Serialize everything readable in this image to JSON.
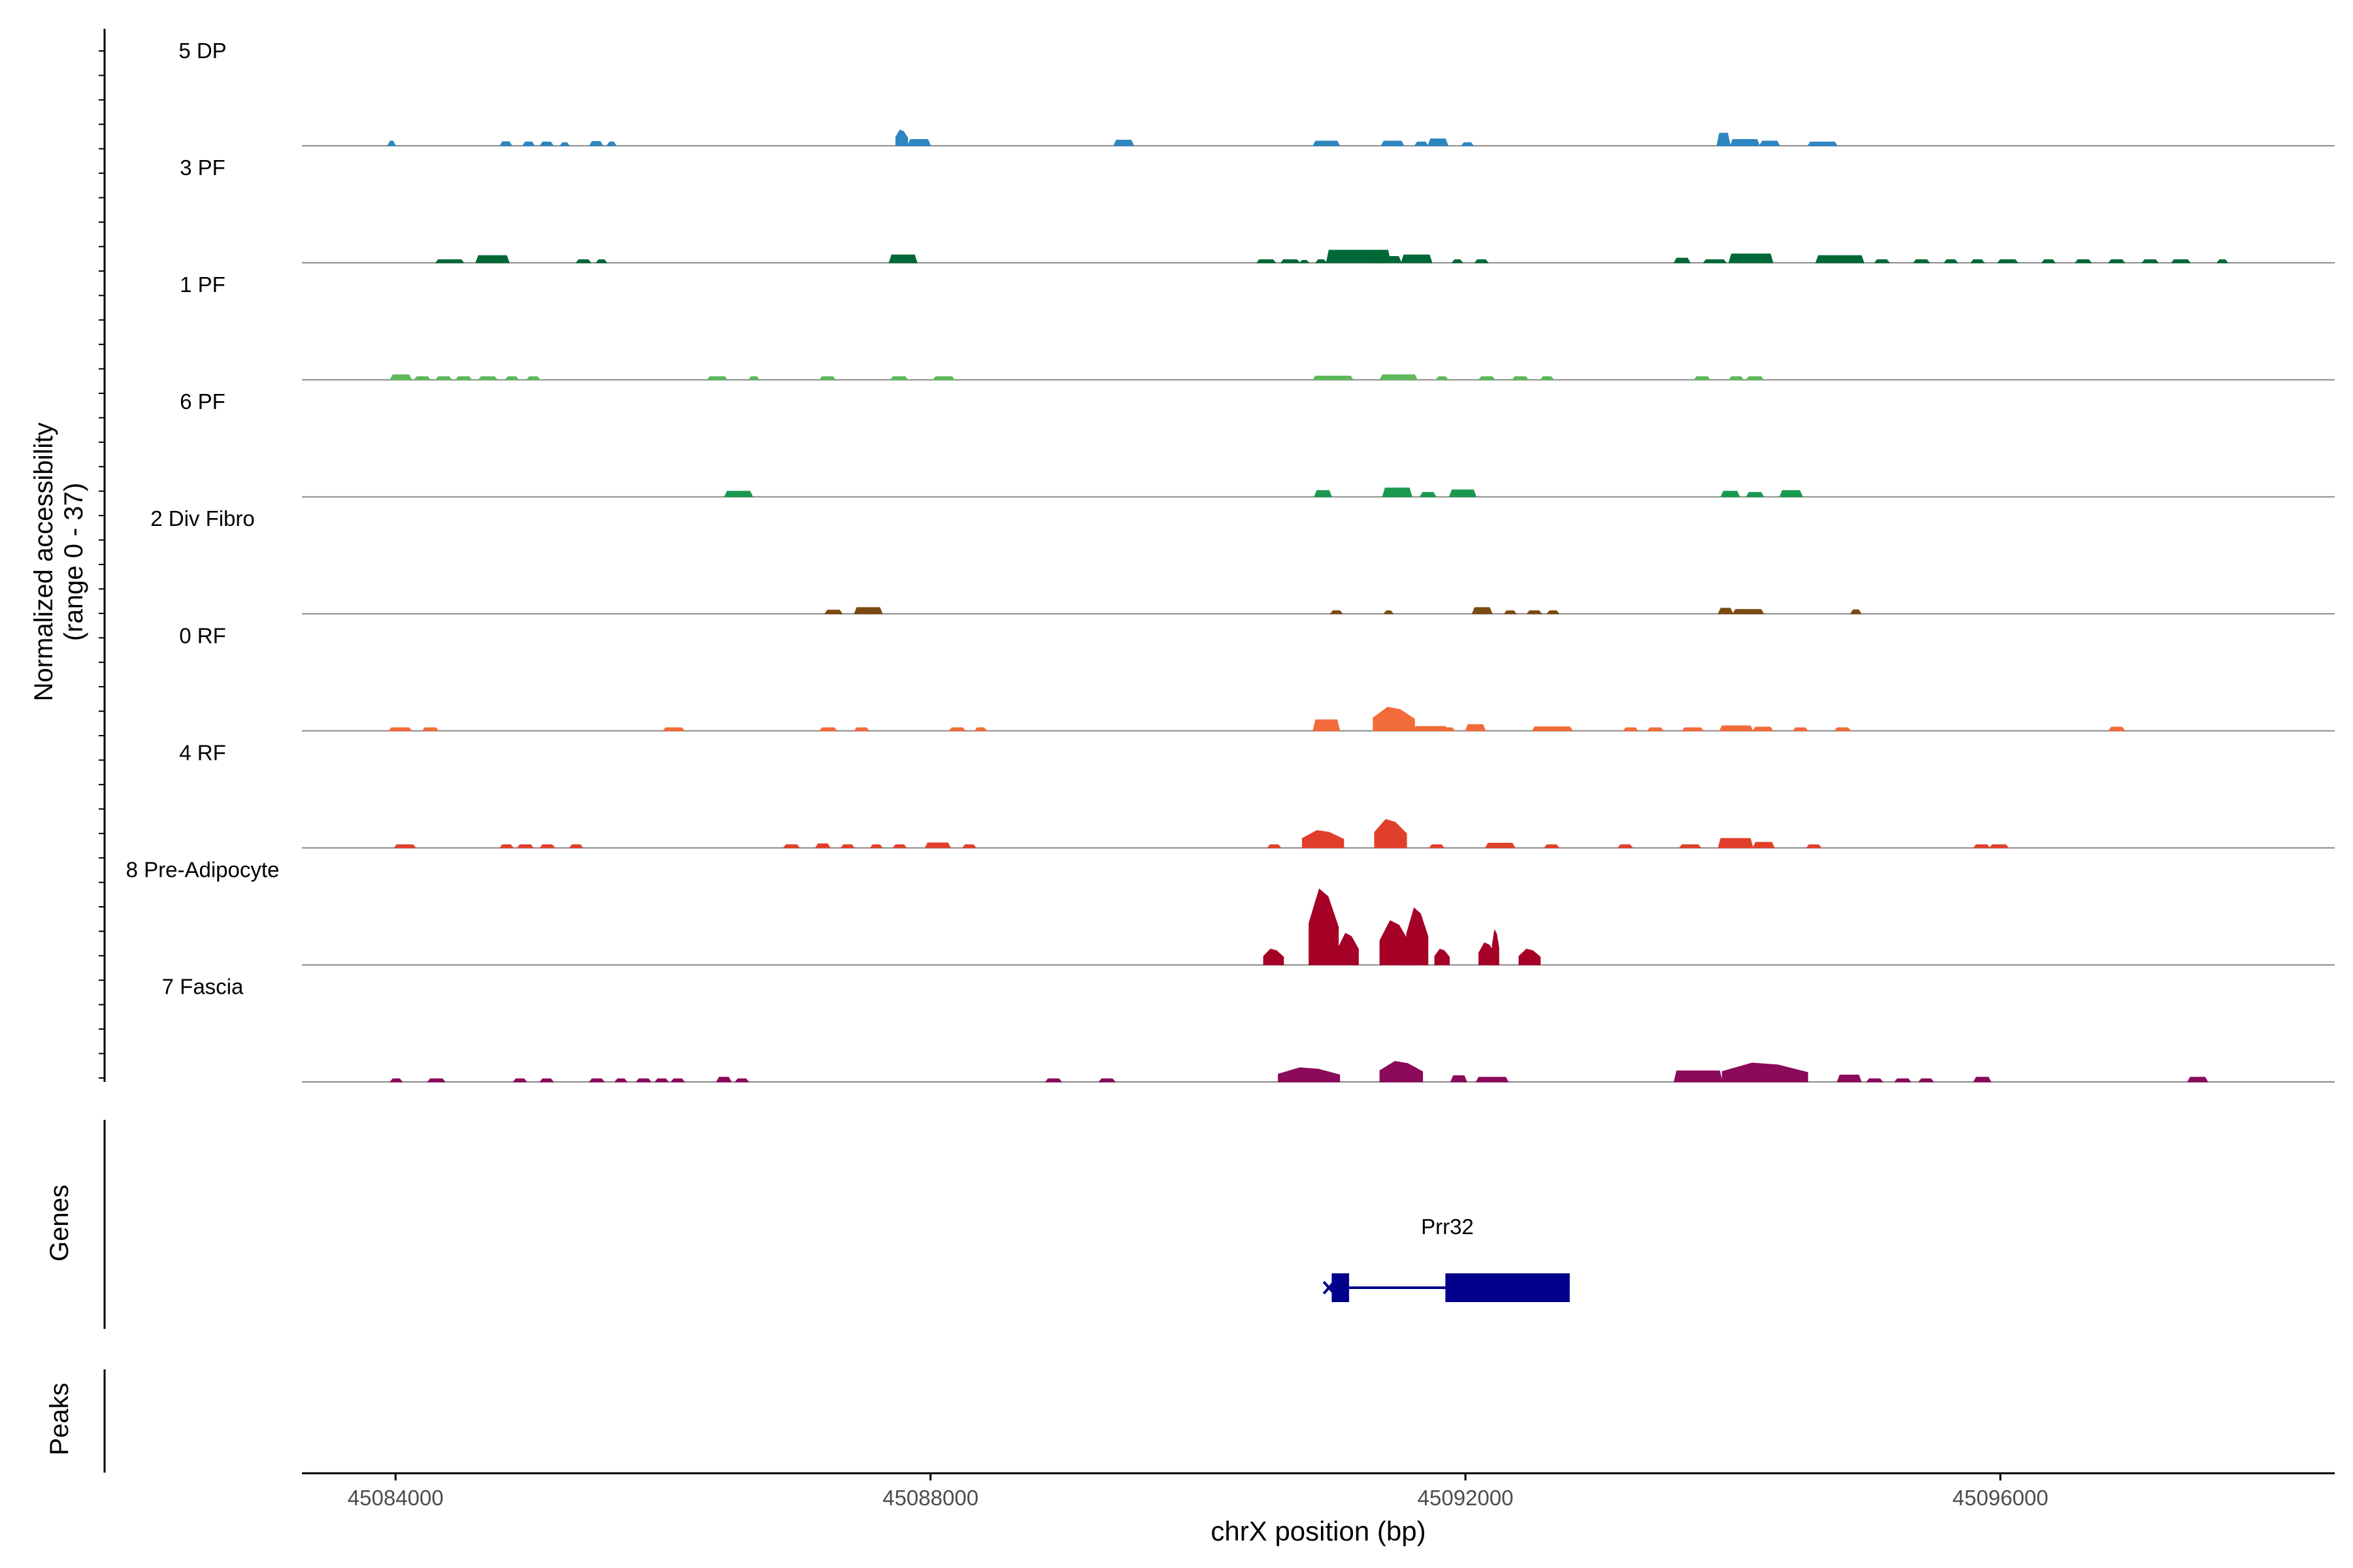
{
  "chart_data": {
    "type": "area",
    "subtype": "genome-coverage-tracks",
    "ylabel_line1": "Normalized accessibility",
    "ylabel_line2": "(range 0 - 37)",
    "ylim": [
      0,
      37
    ],
    "xlabel": "chrX position (bp)",
    "xlim": [
      45083300,
      45098500
    ],
    "xticks": [
      45084000,
      45088000,
      45092000,
      45096000
    ],
    "xtick_labels": [
      "45084000",
      "45088000",
      "45092000",
      "45096000"
    ],
    "genes_label": "Genes",
    "peaks_label": "Peaks",
    "genes": [
      {
        "name": "Prr32",
        "color": "#00008B",
        "start": 45090950,
        "end": 45092780,
        "exons": [
          [
            45091000,
            45091130
          ],
          [
            45091850,
            45092780
          ]
        ]
      }
    ],
    "series": [
      {
        "name": "5 DP",
        "color": "#2E86C1",
        "peaks": [
          [
            45083940,
            45084000,
            1.5
          ],
          [
            45084780,
            45084870,
            1.3
          ],
          [
            45084950,
            45085040,
            1.2
          ],
          [
            45085080,
            45085180,
            1.2
          ],
          [
            45085230,
            45085300,
            1.0
          ],
          [
            45085450,
            45085550,
            1.4
          ],
          [
            45085580,
            45085650,
            1.2
          ],
          [
            45087740,
            45087830,
            5.0
          ],
          [
            45087830,
            45088000,
            2.0
          ],
          [
            45089370,
            45089520,
            1.8
          ],
          [
            45090860,
            45091060,
            1.5
          ],
          [
            45091370,
            45091540,
            1.5
          ],
          [
            45091620,
            45091720,
            1.2
          ],
          [
            45091720,
            45091870,
            2.2
          ],
          [
            45091970,
            45092060,
            1.0
          ],
          [
            45093880,
            45093980,
            4.0
          ],
          [
            45093980,
            45094200,
            2.0
          ],
          [
            45094200,
            45094350,
            1.5
          ],
          [
            45094560,
            45094780,
            1.2
          ]
        ]
      },
      {
        "name": "3 PF",
        "color": "#006837",
        "peaks": [
          [
            45084300,
            45084510,
            1.0
          ],
          [
            45084600,
            45084850,
            2.3
          ],
          [
            45085350,
            45085460,
            1.0
          ],
          [
            45085500,
            45085580,
            1.0
          ],
          [
            45087690,
            45087900,
            2.5
          ],
          [
            45090760,
            45090830,
            0.8
          ],
          [
            45091300,
            45091370,
            1.1
          ],
          [
            45090960,
            45091440,
            4.0
          ],
          [
            45091300,
            45091520,
            2.0
          ],
          [
            45091520,
            45091750,
            2.5
          ],
          [
            45091900,
            45091980,
            1.0
          ],
          [
            45092070,
            45092170,
            1.0
          ],
          [
            45093560,
            45093680,
            1.5
          ],
          [
            45093780,
            45093950,
            1.0
          ],
          [
            45093970,
            45094300,
            2.8
          ],
          [
            45094620,
            45094980,
            2.3
          ],
          [
            45095060,
            45095170,
            1.0
          ],
          [
            45095350,
            45095470,
            1.0
          ],
          [
            45095580,
            45095680,
            1.0
          ],
          [
            45095780,
            45095880,
            1.0
          ],
          [
            45095980,
            45096130,
            1.0
          ],
          [
            45096310,
            45096410,
            1.0
          ],
          [
            45096560,
            45096680,
            1.0
          ],
          [
            45096810,
            45096930,
            1.0
          ],
          [
            45097060,
            45097180,
            1.0
          ],
          [
            45097280,
            45097420,
            1.0
          ],
          [
            45097620,
            45097700,
            1.0
          ],
          [
            45090440,
            45090580,
            1.0
          ],
          [
            45090620,
            45090760,
            1.0
          ],
          [
            45090880,
            45090960,
            1.0
          ]
        ]
      },
      {
        "name": "1 PF",
        "color": "#5DB85C",
        "peaks": [
          [
            45083960,
            45084120,
            1.6
          ],
          [
            45084140,
            45084260,
            1.0
          ],
          [
            45084300,
            45084420,
            1.0
          ],
          [
            45084450,
            45084570,
            1.0
          ],
          [
            45084620,
            45084760,
            1.0
          ],
          [
            45084820,
            45084920,
            1.0
          ],
          [
            45084980,
            45085080,
            1.0
          ],
          [
            45086330,
            45086480,
            1.0
          ],
          [
            45086640,
            45086720,
            1.0
          ],
          [
            45087170,
            45087290,
            1.0
          ],
          [
            45087700,
            45087830,
            1.0
          ],
          [
            45088020,
            45088180,
            1.0
          ],
          [
            45090860,
            45091160,
            1.2
          ],
          [
            45091360,
            45091640,
            1.6
          ],
          [
            45091780,
            45091870,
            1.0
          ],
          [
            45092100,
            45092220,
            1.0
          ],
          [
            45092350,
            45092470,
            1.0
          ],
          [
            45092560,
            45092660,
            1.0
          ],
          [
            45093710,
            45093830,
            1.0
          ],
          [
            45093970,
            45094080,
            1.0
          ],
          [
            45094100,
            45094230,
            1.0
          ]
        ]
      },
      {
        "name": "6 PF",
        "color": "#1A9850",
        "peaks": [
          [
            45086460,
            45086670,
            1.8
          ],
          [
            45090870,
            45091000,
            2.0
          ],
          [
            45091380,
            45091600,
            2.8
          ],
          [
            45091660,
            45091780,
            1.4
          ],
          [
            45091880,
            45092080,
            2.2
          ],
          [
            45093910,
            45094050,
            1.8
          ],
          [
            45094100,
            45094230,
            1.4
          ],
          [
            45094350,
            45094520,
            2.0
          ]
        ]
      },
      {
        "name": "2 Div Fibro",
        "color": "#7B4A12",
        "peaks": [
          [
            45087210,
            45087340,
            1.2
          ],
          [
            45087430,
            45087640,
            2.0
          ],
          [
            45090990,
            45091080,
            1.0
          ],
          [
            45091390,
            45091460,
            1.0
          ],
          [
            45092050,
            45092200,
            2.0
          ],
          [
            45092290,
            45092380,
            1.0
          ],
          [
            45092460,
            45092570,
            1.0
          ],
          [
            45092610,
            45092700,
            1.0
          ],
          [
            45093890,
            45094000,
            1.8
          ],
          [
            45094000,
            45094230,
            1.4
          ],
          [
            45094880,
            45094960,
            1.3
          ]
        ]
      },
      {
        "name": "0 RF",
        "color": "#F26B3A",
        "peaks": [
          [
            45083950,
            45084120,
            1.0
          ],
          [
            45084200,
            45084320,
            1.0
          ],
          [
            45086000,
            45086160,
            1.0
          ],
          [
            45087170,
            45087300,
            1.0
          ],
          [
            45087430,
            45087540,
            1.0
          ],
          [
            45088140,
            45088260,
            1.0
          ],
          [
            45088330,
            45088420,
            1.0
          ],
          [
            45090860,
            45091060,
            3.5
          ],
          [
            45091310,
            45091620,
            7.5
          ],
          [
            45091610,
            45091870,
            1.4
          ],
          [
            45091820,
            45091920,
            1.0
          ],
          [
            45092000,
            45092150,
            2.0
          ],
          [
            45092500,
            45092800,
            1.3
          ],
          [
            45093180,
            45093290,
            1.0
          ],
          [
            45093360,
            45093480,
            1.0
          ],
          [
            45093620,
            45093780,
            1.0
          ],
          [
            45093900,
            45094150,
            1.6
          ],
          [
            45094150,
            45094300,
            1.2
          ],
          [
            45094450,
            45094560,
            1.0
          ],
          [
            45094760,
            45094880,
            1.0
          ],
          [
            45096810,
            45096930,
            1.2
          ]
        ]
      },
      {
        "name": "4 RF",
        "color": "#E0402B",
        "peaks": [
          [
            45083990,
            45084150,
            1.0
          ],
          [
            45084780,
            45084880,
            1.0
          ],
          [
            45084910,
            45085030,
            1.0
          ],
          [
            45085080,
            45085190,
            1.0
          ],
          [
            45085300,
            45085400,
            1.0
          ],
          [
            45086900,
            45087020,
            1.0
          ],
          [
            45087140,
            45087250,
            1.3
          ],
          [
            45087330,
            45087430,
            1.0
          ],
          [
            45087550,
            45087640,
            1.0
          ],
          [
            45087720,
            45087820,
            1.0
          ],
          [
            45087960,
            45088150,
            1.6
          ],
          [
            45088240,
            45088340,
            1.0
          ],
          [
            45090520,
            45090620,
            1.0
          ],
          [
            45090780,
            45091090,
            5.5
          ],
          [
            45091320,
            45091560,
            9.0
          ],
          [
            45091730,
            45091840,
            1.0
          ],
          [
            45092150,
            45092370,
            1.5
          ],
          [
            45092590,
            45092700,
            1.0
          ],
          [
            45093140,
            45093250,
            1.0
          ],
          [
            45093600,
            45093760,
            1.0
          ],
          [
            45093890,
            45094150,
            3.0
          ],
          [
            45094150,
            45094310,
            1.8
          ],
          [
            45094550,
            45094660,
            1.0
          ],
          [
            45095800,
            45095920,
            1.0
          ],
          [
            45095920,
            45096060,
            1.0
          ]
        ]
      },
      {
        "name": "8 Pre-Adipocyte",
        "color": "#A50026",
        "peaks": [
          [
            45090490,
            45090640,
            5.0
          ],
          [
            45090830,
            45091050,
            24.0
          ],
          [
            45091050,
            45091200,
            10.0
          ],
          [
            45091360,
            45091580,
            14.0
          ],
          [
            45091560,
            45091720,
            18.0
          ],
          [
            45091770,
            45091880,
            5.0
          ],
          [
            45092100,
            45092220,
            7.0
          ],
          [
            45092200,
            45092250,
            11.0
          ],
          [
            45092400,
            45092560,
            5.0
          ]
        ]
      },
      {
        "name": "7 Fascia",
        "color": "#8B0A5A",
        "peaks": [
          [
            45083960,
            45084050,
            1.0
          ],
          [
            45084240,
            45084370,
            1.0
          ],
          [
            45084880,
            45084980,
            1.0
          ],
          [
            45085080,
            45085180,
            1.0
          ],
          [
            45085450,
            45085560,
            1.0
          ],
          [
            45085640,
            45085730,
            1.0
          ],
          [
            45085800,
            45085910,
            1.0
          ],
          [
            45085940,
            45086040,
            1.0
          ],
          [
            45086060,
            45086160,
            1.0
          ],
          [
            45086400,
            45086510,
            1.5
          ],
          [
            45086540,
            45086640,
            1.0
          ],
          [
            45088860,
            45088980,
            1.0
          ],
          [
            45089260,
            45089380,
            1.0
          ],
          [
            45090600,
            45091060,
            4.5
          ],
          [
            45091360,
            45091680,
            6.5
          ],
          [
            45091890,
            45092010,
            2.0
          ],
          [
            45092080,
            45092320,
            1.5
          ],
          [
            45093560,
            45093920,
            3.5
          ],
          [
            45093920,
            45094560,
            6.0
          ],
          [
            45094780,
            45094960,
            2.2
          ],
          [
            45095000,
            45095120,
            1.0
          ],
          [
            45095210,
            45095330,
            1.0
          ],
          [
            45095390,
            45095500,
            1.0
          ],
          [
            45095800,
            45095930,
            1.5
          ],
          [
            45097400,
            45097550,
            1.5
          ]
        ]
      }
    ]
  }
}
